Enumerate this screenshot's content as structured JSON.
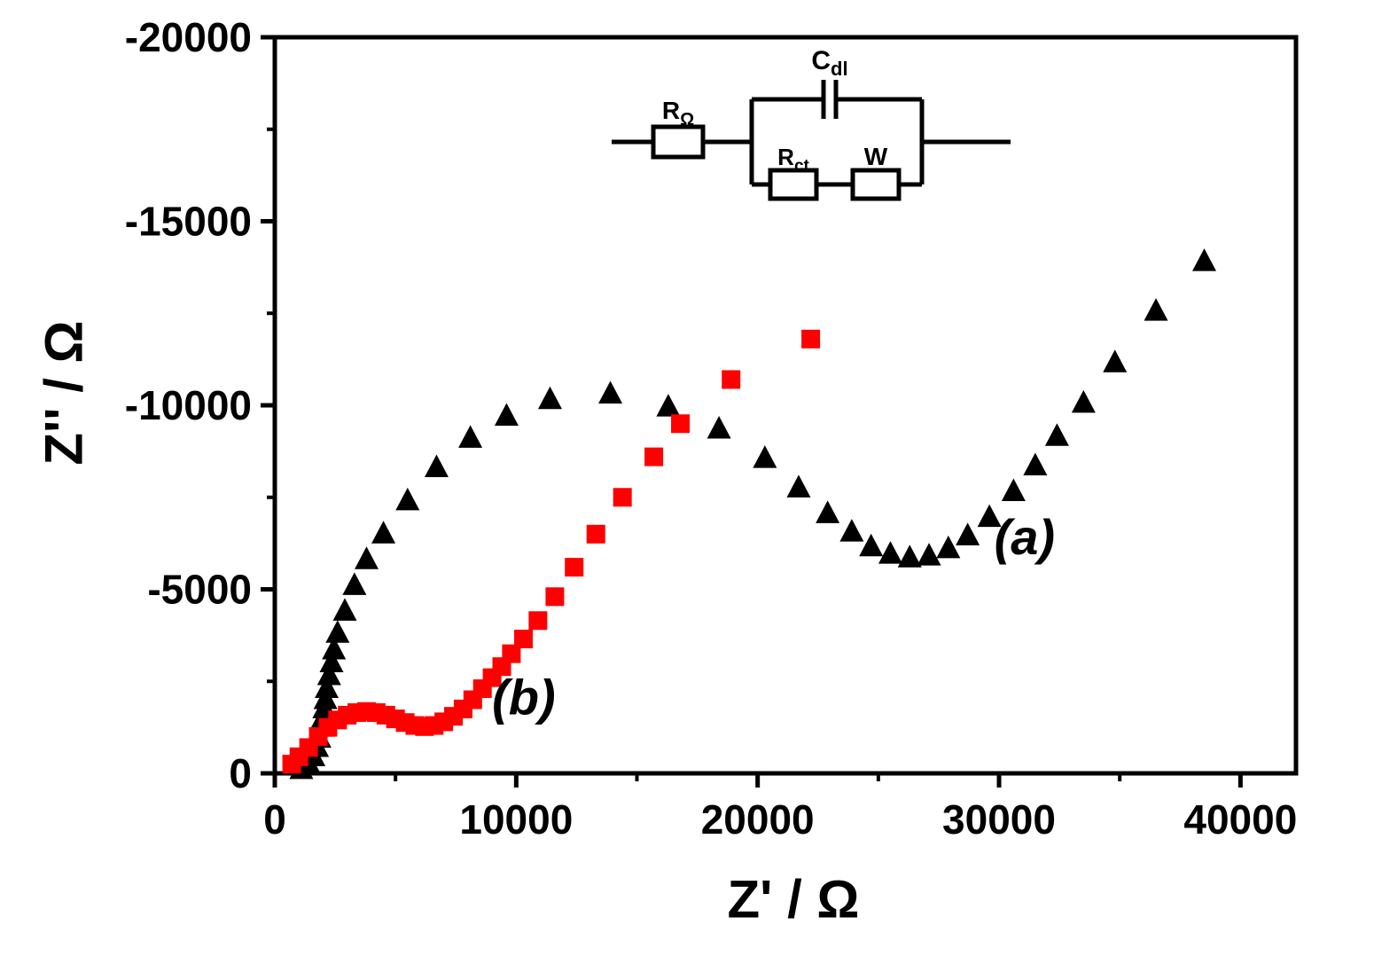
{
  "figure": {
    "background": "#ffffff"
  },
  "chart_data": {
    "type": "scatter",
    "title": "",
    "xlabel": "Z' / Ω",
    "ylabel": "Z'' / Ω",
    "xlim": [
      0,
      42300
    ],
    "ylim": [
      0,
      -20000
    ],
    "grid": false,
    "legend_position": "none",
    "x_ticks": {
      "values": [
        0,
        10000,
        20000,
        30000,
        40000
      ],
      "labels": [
        "0",
        "10000",
        "20000",
        "30000",
        "40000"
      ],
      "minor": [
        5000,
        15000,
        25000,
        35000
      ]
    },
    "y_ticks": {
      "values": [
        0,
        -5000,
        -10000,
        -15000,
        -20000
      ],
      "labels": [
        "0",
        "-5000",
        "-10000",
        "-15000",
        "-20000"
      ],
      "minor": [
        -2500,
        -7500,
        -12500,
        -17500
      ]
    },
    "series": [
      {
        "name": "(a)",
        "marker": "triangle",
        "color": "#000000",
        "points": [
          [
            1100,
            -100
          ],
          [
            1400,
            -250
          ],
          [
            1600,
            -450
          ],
          [
            1750,
            -700
          ],
          [
            1850,
            -950
          ],
          [
            1950,
            -1250
          ],
          [
            2000,
            -1500
          ],
          [
            2050,
            -1750
          ],
          [
            2100,
            -2000
          ],
          [
            2150,
            -2300
          ],
          [
            2250,
            -2650
          ],
          [
            2350,
            -3000
          ],
          [
            2450,
            -3350
          ],
          [
            2600,
            -3800
          ],
          [
            2900,
            -4400
          ],
          [
            3300,
            -5100
          ],
          [
            3800,
            -5800
          ],
          [
            4500,
            -6500
          ],
          [
            5500,
            -7400
          ],
          [
            6700,
            -8300
          ],
          [
            8100,
            -9100
          ],
          [
            9600,
            -9700
          ],
          [
            11400,
            -10150
          ],
          [
            13900,
            -10300
          ],
          [
            16300,
            -9950
          ],
          [
            18400,
            -9350
          ],
          [
            20300,
            -8550
          ],
          [
            21700,
            -7750
          ],
          [
            22900,
            -7050
          ],
          [
            23900,
            -6550
          ],
          [
            24700,
            -6150
          ],
          [
            25500,
            -5950
          ],
          [
            26300,
            -5850
          ],
          [
            27100,
            -5900
          ],
          [
            27900,
            -6100
          ],
          [
            28700,
            -6450
          ],
          [
            29600,
            -6950
          ],
          [
            30600,
            -7650
          ],
          [
            31500,
            -8350
          ],
          [
            32400,
            -9150
          ],
          [
            33500,
            -10050
          ],
          [
            34800,
            -11150
          ],
          [
            36500,
            -12550
          ],
          [
            38500,
            -13900
          ]
        ]
      },
      {
        "name": "(b)",
        "marker": "square",
        "color": "#ff0000",
        "points": [
          [
            700,
            -250
          ],
          [
            1000,
            -450
          ],
          [
            1400,
            -700
          ],
          [
            1800,
            -1000
          ],
          [
            2200,
            -1250
          ],
          [
            2600,
            -1450
          ],
          [
            3000,
            -1580
          ],
          [
            3400,
            -1650
          ],
          [
            3800,
            -1680
          ],
          [
            4200,
            -1650
          ],
          [
            4600,
            -1580
          ],
          [
            5000,
            -1480
          ],
          [
            5400,
            -1380
          ],
          [
            5800,
            -1300
          ],
          [
            6200,
            -1270
          ],
          [
            6600,
            -1300
          ],
          [
            7000,
            -1400
          ],
          [
            7400,
            -1550
          ],
          [
            7800,
            -1750
          ],
          [
            8200,
            -2000
          ],
          [
            8600,
            -2300
          ],
          [
            9000,
            -2600
          ],
          [
            9400,
            -2900
          ],
          [
            9800,
            -3250
          ],
          [
            10300,
            -3650
          ],
          [
            10900,
            -4150
          ],
          [
            11600,
            -4800
          ],
          [
            12400,
            -5600
          ],
          [
            13300,
            -6500
          ],
          [
            14400,
            -7500
          ],
          [
            15700,
            -8600
          ],
          [
            16800,
            -9500
          ],
          [
            18900,
            -10700
          ],
          [
            22200,
            -11800
          ]
        ]
      }
    ],
    "annotations": [
      {
        "text": "(a)",
        "x": 29800,
        "y": -5950,
        "color": "#000000"
      },
      {
        "text": "(b)",
        "x": 9000,
        "y": -1600,
        "color": "#000000"
      }
    ]
  },
  "inset_circuit": {
    "labels": {
      "series_resistor": {
        "base": "R",
        "sub": "Ω"
      },
      "capacitor": {
        "base": "C",
        "sub": "dl"
      },
      "charge_transfer_resistor": {
        "base": "R",
        "sub": "ct"
      },
      "warburg": {
        "base": "W",
        "sub": ""
      }
    }
  }
}
